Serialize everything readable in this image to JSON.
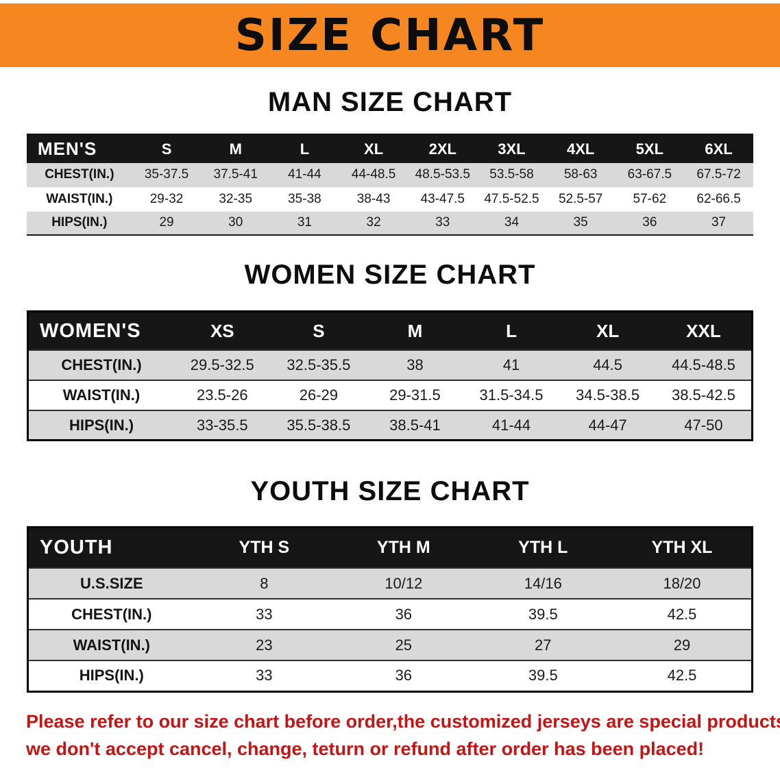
{
  "banner": {
    "title": "SIZE CHART",
    "bg_color": "#f6861f"
  },
  "sections": [
    {
      "heading": "MAN SIZE CHART",
      "table": {
        "corner_label": "MEN'S",
        "columns": [
          "S",
          "M",
          "L",
          "XL",
          "2XL",
          "3XL",
          "4XL",
          "5XL",
          "6XL"
        ],
        "rows": [
          {
            "label": "CHEST(IN.)",
            "values": [
              "35-37.5",
              "37.5-41",
              "41-44",
              "44-48.5",
              "48.5-53.5",
              "53.5-58",
              "58-63",
              "63-67.5",
              "67.5-72"
            ]
          },
          {
            "label": "WAIST(IN.)",
            "values": [
              "29-32",
              "32-35",
              "35-38",
              "38-43",
              "43-47.5",
              "47.5-52.5",
              "52.5-57",
              "57-62",
              "62-66.5"
            ]
          },
          {
            "label": "HIPS(IN.)",
            "values": [
              "29",
              "30",
              "31",
              "32",
              "33",
              "34",
              "35",
              "36",
              "37"
            ]
          }
        ]
      }
    },
    {
      "heading": "WOMEN SIZE CHART",
      "table": {
        "corner_label": "WOMEN'S",
        "columns": [
          "XS",
          "S",
          "M",
          "L",
          "XL",
          "XXL"
        ],
        "rows": [
          {
            "label": "CHEST(IN.)",
            "values": [
              "29.5-32.5",
              "32.5-35.5",
              "38",
              "41",
              "44.5",
              "44.5-48.5"
            ]
          },
          {
            "label": "WAIST(IN.)",
            "values": [
              "23.5-26",
              "26-29",
              "29-31.5",
              "31.5-34.5",
              "34.5-38.5",
              "38.5-42.5"
            ]
          },
          {
            "label": "HIPS(IN.)",
            "values": [
              "33-35.5",
              "35.5-38.5",
              "38.5-41",
              "41-44",
              "44-47",
              "47-50"
            ]
          }
        ]
      }
    },
    {
      "heading": "YOUTH SIZE CHART",
      "table": {
        "corner_label": "YOUTH",
        "columns": [
          "YTH S",
          "YTH M",
          "YTH L",
          "YTH XL"
        ],
        "rows": [
          {
            "label": "U.S.SIZE",
            "values": [
              "8",
              "10/12",
              "14/16",
              "18/20"
            ]
          },
          {
            "label": "CHEST(IN.)",
            "values": [
              "33",
              "36",
              "39.5",
              "42.5"
            ]
          },
          {
            "label": "WAIST(IN.)",
            "values": [
              "23",
              "25",
              "27",
              "29"
            ]
          },
          {
            "label": "HIPS(IN.)",
            "values": [
              "33",
              "36",
              "39.5",
              "42.5"
            ]
          }
        ]
      }
    }
  ],
  "footer": {
    "line1": "Please refer to our size chart before order,the customized jerseys are special products,",
    "line2": "we don't accept cancel, change, teturn or refund after order has been placed!",
    "text_color": "#c41414"
  },
  "colors": {
    "banner_orange": "#f6861f",
    "table_header_black": "#161616",
    "row_stripe_gray": "#d9d9d9",
    "notice_red": "#c41414"
  }
}
